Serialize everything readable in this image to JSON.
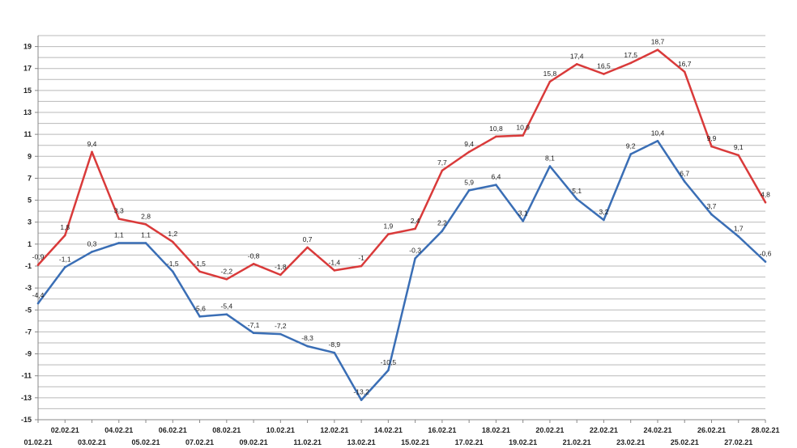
{
  "chart_data": {
    "type": "line",
    "title": "",
    "xlabel": "",
    "ylabel": "",
    "ylim": [
      -15,
      20
    ],
    "yticks": [
      -15,
      -13,
      -11,
      -9,
      -7,
      -5,
      -3,
      -1,
      1,
      3,
      5,
      7,
      9,
      11,
      13,
      15,
      17,
      19
    ],
    "grid": true,
    "legend": "none",
    "categories": [
      "01.02.21",
      "02.02.21",
      "03.02.21",
      "04.02.21",
      "05.02.21",
      "06.02.21",
      "07.02.21",
      "08.02.21",
      "09.02.21",
      "10.02.21",
      "11.02.21",
      "12.02.21",
      "13.02.21",
      "14.02.21",
      "15.02.21",
      "16.02.21",
      "17.02.21",
      "18.02.21",
      "19.02.21",
      "20.02.21",
      "21.02.21",
      "22.02.21",
      "23.02.21",
      "24.02.21",
      "25.02.21",
      "26.02.21",
      "27.02.21",
      "28.02.21"
    ],
    "series": [
      {
        "color": "#d93a3a",
        "values": [
          -0.9,
          1.8,
          9.4,
          3.3,
          2.8,
          1.2,
          -1.5,
          -2.2,
          -0.8,
          -1.8,
          0.7,
          -1.4,
          -1.0,
          1.9,
          2.4,
          7.7,
          9.4,
          10.8,
          10.9,
          15.8,
          17.4,
          16.5,
          17.5,
          18.7,
          16.7,
          9.9,
          9.1,
          4.8
        ],
        "labels": [
          "-0,9",
          "1,8",
          "9,4",
          "3,3",
          "2,8",
          "1,2",
          "-1,5",
          "-2,2",
          "-0,8",
          "-1,8",
          "0,7",
          "-1,4",
          "-1",
          "1,9",
          "2,4",
          "7,7",
          "9,4",
          "10,8",
          "10,9",
          "15,8",
          "17,4",
          "16,5",
          "17,5",
          "18,7",
          "16,7",
          "9,9",
          "9,1",
          "4,8"
        ]
      },
      {
        "color": "#3a6eb5",
        "values": [
          -4.4,
          -1.1,
          0.3,
          1.1,
          1.1,
          -1.5,
          -5.6,
          -5.4,
          -7.1,
          -7.2,
          -8.3,
          -8.9,
          -13.2,
          -10.5,
          -0.3,
          2.2,
          5.9,
          6.4,
          3.1,
          8.1,
          5.1,
          3.2,
          9.2,
          10.4,
          6.7,
          3.7,
          1.7,
          -0.6
        ],
        "labels": [
          "-4,4",
          "-1,1",
          "0,3",
          "1,1",
          "1,1",
          "-1,5",
          "-5,6",
          "-5,4",
          "-7,1",
          "-7,2",
          "-8,3",
          "-8,9",
          "-13,2",
          "-10,5",
          "-0,3",
          "2,2",
          "5,9",
          "6,4",
          "3,1",
          "8,1",
          "5,1",
          "3,2",
          "9,2",
          "10,4",
          "6,7",
          "3,7",
          "1,7",
          "-0,6"
        ]
      }
    ]
  }
}
